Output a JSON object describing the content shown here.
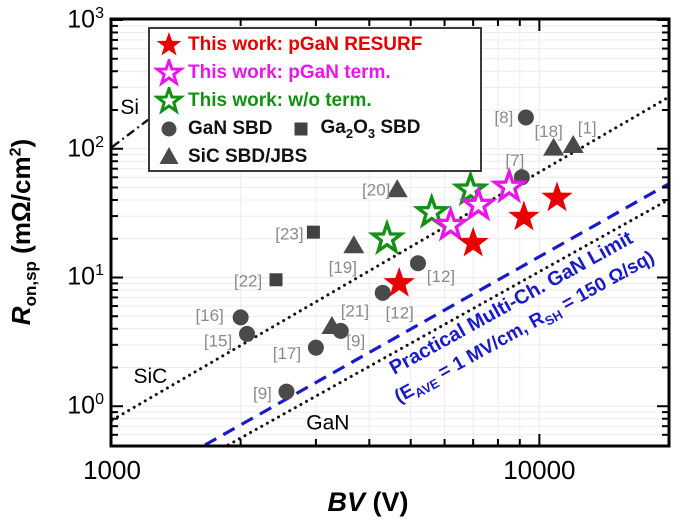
{
  "figure": {
    "y_axis": {
      "title_r": "R",
      "title_sub": "on,sp",
      "title_mid": " (mΩ/cm",
      "title_sup": "2",
      "title_end": ")",
      "tick_exponents": [
        3,
        2,
        1,
        0
      ]
    },
    "x_axis": {
      "title_italic": "BV",
      "title_rest": " (V)",
      "tick_labels": [
        {
          "value": 1000,
          "label": "1000"
        },
        {
          "value": 10000,
          "label": "10000"
        }
      ]
    }
  },
  "legend": {
    "rows": [
      [
        0
      ],
      [
        1
      ],
      [
        2
      ],
      [
        3,
        4
      ],
      [
        5
      ]
    ],
    "items": [
      {
        "marker": "star-filled",
        "color": "#e60000",
        "text_color": "#e60000",
        "label": "This work: pGaN RESURF"
      },
      {
        "marker": "star-open",
        "color": "#e816e8",
        "text_color": "#e816e8",
        "label": "This work: pGaN term."
      },
      {
        "marker": "star-open",
        "color": "#149114",
        "text_color": "#149114",
        "label": "This work: w/o term."
      },
      {
        "marker": "circle",
        "color": "#4a4a4a",
        "text_color": "#111111",
        "label": "GaN SBD"
      },
      {
        "marker": "square",
        "color": "#424242",
        "text_color": "#111111",
        "parts": [
          {
            "t": "Ga"
          },
          {
            "sub": "2"
          },
          {
            "t": "O"
          },
          {
            "sub": "3"
          },
          {
            "t": " SBD"
          }
        ]
      },
      {
        "marker": "triangle",
        "color": "#4a4a4a",
        "text_color": "#111111",
        "label": "SiC SBD/JBS"
      }
    ]
  },
  "chart_data": {
    "type": "scatter",
    "title": "",
    "xlabel": "BV (V)",
    "ylabel": "R_on,sp (mOhm/cm2)",
    "x_scale": "log",
    "y_scale": "log",
    "xlim": [
      1000,
      20000
    ],
    "ylim": [
      0.5,
      1000
    ],
    "grid": "minor, light gray",
    "legend_position": "upper left",
    "series": [
      {
        "name": "GaN SBD",
        "marker": "circle",
        "color": "#4a4a4a",
        "points": [
          {
            "bv": 2000,
            "ron": 4.9,
            "ref": "[16]",
            "dx": -31,
            "dy": -2
          },
          {
            "bv": 2070,
            "ron": 3.65,
            "ref": "[15]",
            "dx": -29,
            "dy": 7
          },
          {
            "bv": 3000,
            "ron": 2.85,
            "ref": "[17]",
            "dx": -29,
            "dy": 6
          },
          {
            "bv": 2560,
            "ron": 1.3,
            "ref": "[9]",
            "dx": -24,
            "dy": 2
          },
          {
            "bv": 3430,
            "ron": 3.85,
            "ref": "[9]",
            "dx": 15,
            "dy": 10
          },
          {
            "bv": 4300,
            "ron": 7.6,
            "ref": "[12]",
            "dx": 17,
            "dy": 20
          },
          {
            "bv": 5200,
            "ron": 12.9,
            "ref": "[12]",
            "dx": 23,
            "dy": 13
          },
          {
            "bv": 9100,
            "ron": 60,
            "ref": "[7]",
            "dx": -7,
            "dy": -17
          },
          {
            "bv": 9300,
            "ron": 175,
            "ref": "[8]",
            "dx": -22,
            "dy": 0
          }
        ]
      },
      {
        "name": "Ga2O3 SBD",
        "marker": "square",
        "color": "#424242",
        "points": [
          {
            "bv": 2420,
            "ron": 9.6,
            "ref": "[22]",
            "dx": -28,
            "dy": 1
          },
          {
            "bv": 2960,
            "ron": 22.5,
            "ref": "[23]",
            "dx": -24,
            "dy": 2
          }
        ]
      },
      {
        "name": "SiC SBD/JBS",
        "marker": "triangle",
        "color": "#4a4a4a",
        "points": [
          {
            "bv": 3270,
            "ron": 4.2,
            "ref": "[21]",
            "dx": 23,
            "dy": -15
          },
          {
            "bv": 3680,
            "ron": 17.8,
            "ref": "[19]",
            "dx": -11,
            "dy": 22
          },
          {
            "bv": 4650,
            "ron": 48.5,
            "ref": "[20]",
            "dx": -21,
            "dy": 1
          },
          {
            "bv": 10800,
            "ron": 102,
            "ref": "[18]",
            "dx": -5,
            "dy": -16
          },
          {
            "bv": 12000,
            "ron": 107,
            "ref": "[1]",
            "dx": 14,
            "dy": -17
          }
        ]
      },
      {
        "name": "This work: w/o term.",
        "marker": "star-open",
        "color": "#149114",
        "points": [
          {
            "bv": 4400,
            "ron": 20
          },
          {
            "bv": 5600,
            "ron": 32
          },
          {
            "bv": 6900,
            "ron": 48
          }
        ]
      },
      {
        "name": "This work: pGaN term.",
        "marker": "star-open",
        "color": "#e816e8",
        "points": [
          {
            "bv": 6200,
            "ron": 25.5
          },
          {
            "bv": 7200,
            "ron": 36.5
          },
          {
            "bv": 8500,
            "ron": 50.5
          }
        ]
      },
      {
        "name": "This work: pGaN RESURF",
        "marker": "star-filled",
        "color": "#e60000",
        "points": [
          {
            "bv": 4700,
            "ron": 9.0
          },
          {
            "bv": 7000,
            "ron": 18.5
          },
          {
            "bv": 9200,
            "ron": 29.5
          },
          {
            "bv": 11000,
            "ron": 41.5
          }
        ]
      }
    ],
    "limit_lines": [
      {
        "name": "Si limit",
        "style": "dashdot",
        "color": "#111111",
        "from": [
          1000,
          103
        ],
        "to": [
          1215,
          168
        ]
      },
      {
        "name": "SiC limit",
        "style": "dotted",
        "color": "#111111",
        "from": [
          1000,
          0.78
        ],
        "to": [
          20000,
          250
        ]
      },
      {
        "name": "GaN limit",
        "style": "dotted",
        "color": "#111111",
        "from": [
          1870,
          0.5
        ],
        "to": [
          20000,
          40
        ]
      },
      {
        "name": "Practical Multi-Ch. GaN Limit",
        "style": "dashed",
        "color": "#1a1acd",
        "from": [
          1650,
          0.5
        ],
        "to": [
          20000,
          53
        ]
      }
    ],
    "annotations": [
      {
        "text": "Si",
        "bv": 1100,
        "ron": 209
      },
      {
        "text": "SiC",
        "bv": 1230,
        "ron": 1.7
      },
      {
        "text": "GaN",
        "bv": 3200,
        "ron": 0.74
      }
    ],
    "rotated_label": {
      "line1": "Practical Multi-Ch. GaN Limit",
      "line2_p1": "(E",
      "line2_sub1": "AVE",
      "line2_p2": " = 1 MV/cm, R",
      "line2_sub2": "SH",
      "line2_p3": " = 150 Ω/sq)",
      "angle_deg": -29
    }
  }
}
